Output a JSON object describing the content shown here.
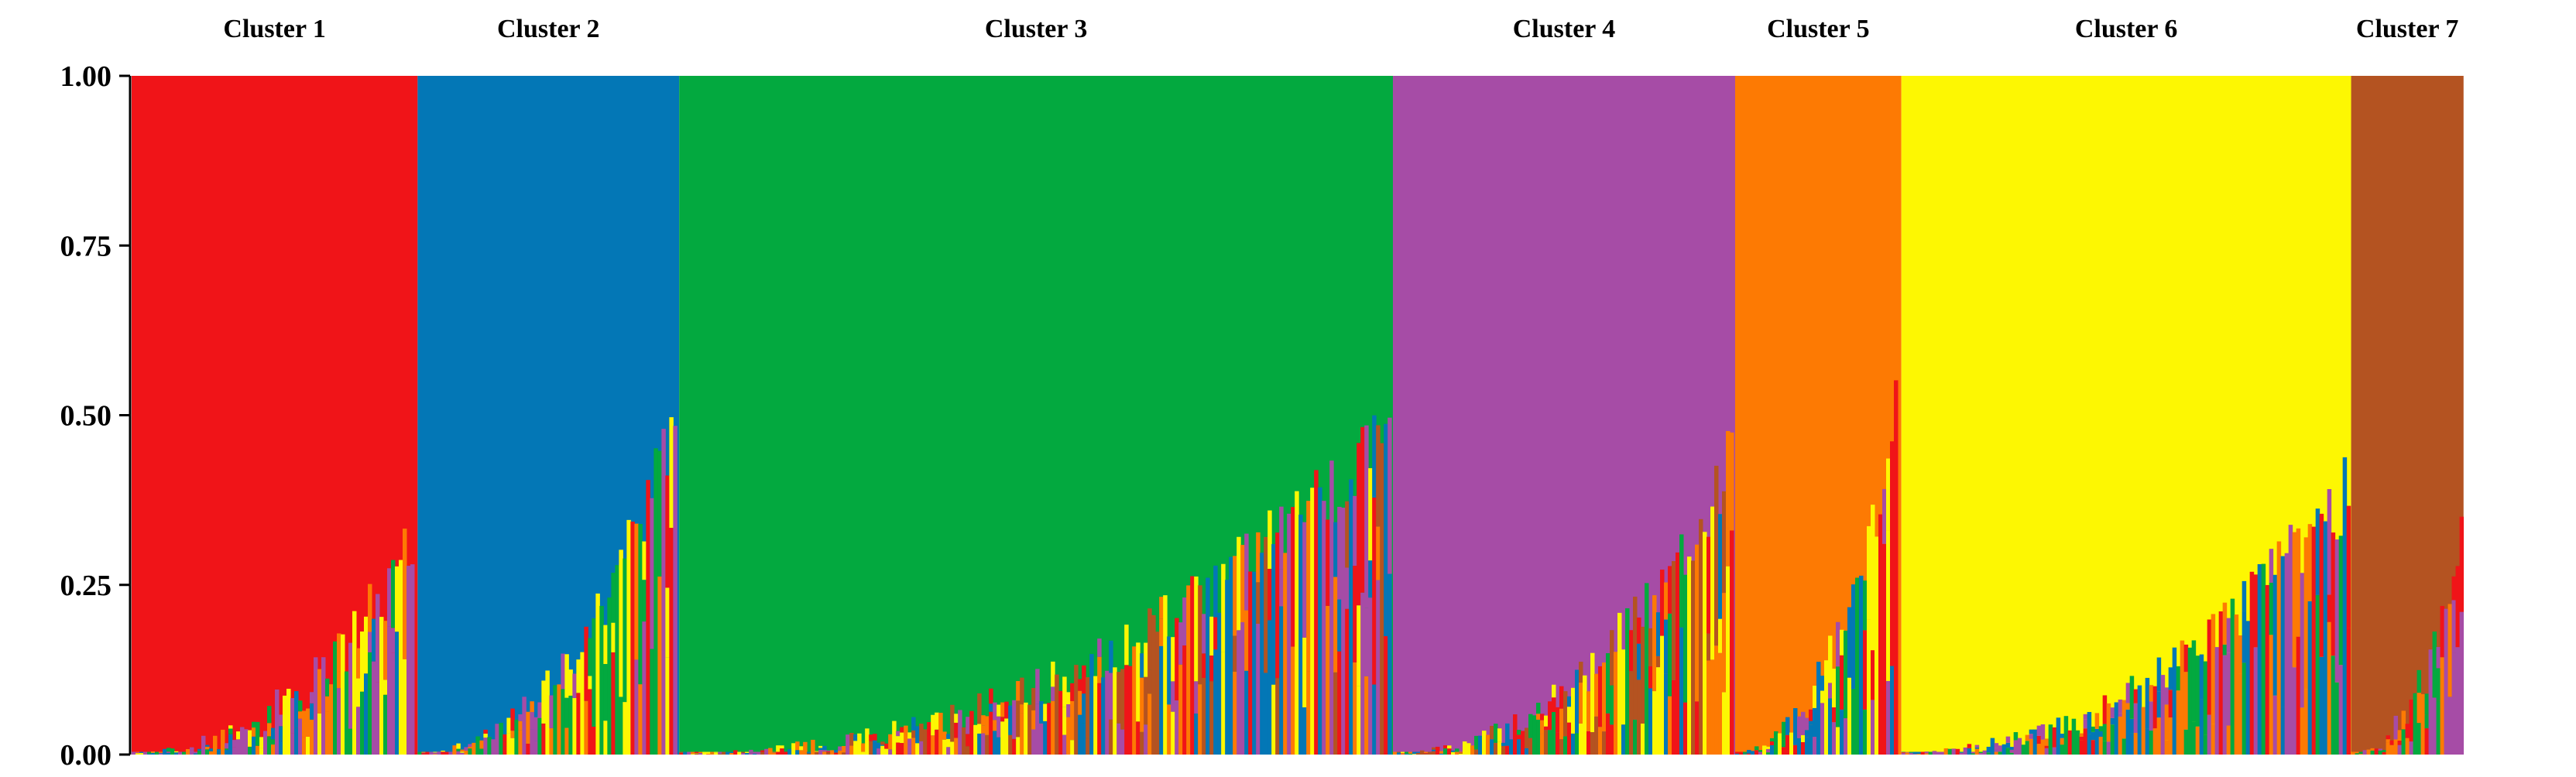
{
  "chart_data": {
    "type": "stacked_bar",
    "title": "",
    "xlabel": "",
    "ylabel": "",
    "ylim": [
      0,
      1
    ],
    "yticks": [
      "0.00",
      "0.25",
      "0.50",
      "0.75",
      "1.00"
    ],
    "yticks_values": [
      0,
      0.25,
      0.5,
      0.75,
      1.0
    ],
    "grid": false,
    "legend": "none",
    "colors": {
      "red": "#f01418",
      "blue": "#0377b6",
      "green": "#03a93f",
      "purple": "#a64ca6",
      "orange": "#fd7a03",
      "yellow": "#fdf702",
      "brown": "#b45321"
    },
    "clusters": [
      {
        "label": "Cluster 1",
        "color": "red",
        "fraction_of_samples": 0.117,
        "admixture_min_at_end": 0.28,
        "admixture_colors": [
          "yellow",
          "green",
          "blue",
          "purple",
          "orange"
        ]
      },
      {
        "label": "Cluster 2",
        "color": "blue",
        "fraction_of_samples": 0.107,
        "admixture_min_at_end": 0.48,
        "admixture_colors": [
          "purple",
          "red",
          "orange",
          "yellow",
          "green"
        ]
      },
      {
        "label": "Cluster 3",
        "color": "green",
        "fraction_of_samples": 0.292,
        "admixture_min_at_end": 0.46,
        "admixture_colors": [
          "purple",
          "orange",
          "red",
          "yellow",
          "blue",
          "brown"
        ]
      },
      {
        "label": "Cluster 4",
        "color": "purple",
        "fraction_of_samples": 0.14,
        "admixture_min_at_end": 0.42,
        "admixture_colors": [
          "brown",
          "green",
          "blue",
          "red",
          "orange",
          "yellow"
        ]
      },
      {
        "label": "Cluster 5",
        "color": "orange",
        "fraction_of_samples": 0.068,
        "admixture_min_at_end": 0.5,
        "admixture_colors": [
          "red",
          "blue",
          "green",
          "yellow",
          "purple"
        ]
      },
      {
        "label": "Cluster 6",
        "color": "yellow",
        "fraction_of_samples": 0.184,
        "admixture_min_at_end": 0.38,
        "admixture_colors": [
          "red",
          "green",
          "blue",
          "orange",
          "purple"
        ]
      },
      {
        "label": "Cluster 7",
        "color": "brown",
        "fraction_of_samples": 0.046,
        "admixture_min_at_end": 0.3,
        "admixture_colors": [
          "green",
          "purple",
          "orange",
          "red"
        ]
      }
    ]
  }
}
